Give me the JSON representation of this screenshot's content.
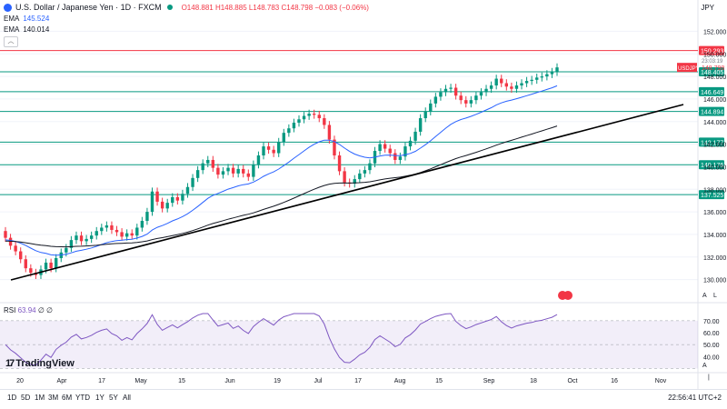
{
  "header": {
    "title": "U.S. Dollar / Japanese Yen · 1D · FXCM",
    "ohlc": "O148.881 H148.885 L148.783 C148.798 −0.083 (−0.06%)"
  },
  "indicators": {
    "ema1_label": "EMA",
    "ema1_value": "145.524",
    "ema2_label": "EMA",
    "ema2_value": "140.014",
    "collapse_glyph": "︿"
  },
  "currency": "JPY",
  "price_axis": {
    "ticks": [
      "152.000",
      "150.000",
      "148.000",
      "146.000",
      "144.000",
      "142.000",
      "140.000",
      "138.000",
      "136.000",
      "134.000",
      "132.000",
      "130.000"
    ],
    "hlines": [
      {
        "value": 150.293,
        "label": "150.293",
        "color": "#f23645"
      },
      {
        "value": 148.405,
        "label": "148.405",
        "color": "#089981"
      },
      {
        "value": 146.649,
        "label": "146.649",
        "color": "#089981"
      },
      {
        "value": 144.894,
        "label": "144.894",
        "color": "#089981"
      },
      {
        "value": 142.177,
        "label": "142.177",
        "color": "#089981"
      },
      {
        "value": 140.176,
        "label": "140.176",
        "color": "#089981"
      },
      {
        "value": 137.525,
        "label": "137.525",
        "color": "#089981"
      }
    ],
    "price_tag": {
      "symbol": "USDJPY",
      "value": "148.798",
      "time": "23:03:19"
    },
    "range": [
      129,
      153
    ]
  },
  "rsi": {
    "label": "RSI",
    "value": "63.94",
    "extra": "∅ ∅",
    "ticks": [
      "70.00",
      "60.00",
      "50.00",
      "40.00"
    ],
    "levels": [
      70,
      50,
      30
    ]
  },
  "time_axis": {
    "labels": [
      "20",
      "Apr",
      "17",
      "May",
      "15",
      "Jun",
      "19",
      "Jul",
      "17",
      "Aug",
      "15",
      "Sep",
      "18",
      "Oct",
      "16",
      "Nov"
    ]
  },
  "axis_buttons": {
    "log": "A",
    "lin": "L",
    "sep": "|",
    "full": "A"
  },
  "branding": {
    "logo_text": "TradingView",
    "logo_mark": "17"
  },
  "toolbar": {
    "timeframes": [
      "1D",
      "5D",
      "1M",
      "3M",
      "6M",
      "YTD",
      "1Y",
      "5Y",
      "All"
    ],
    "clock": "22:56:41 UTC+2"
  },
  "colors": {
    "up": "#089981",
    "down": "#f23645",
    "ema_fast": "#2962ff",
    "ema_slow": "#131722",
    "trend": "#000000",
    "rsi": "#7e57c2"
  },
  "chart_data": {
    "type": "candlestick",
    "closes": [
      133.7,
      133.0,
      132.5,
      131.8,
      131.0,
      130.6,
      130.4,
      130.9,
      131.5,
      131.0,
      131.9,
      132.4,
      132.8,
      133.5,
      133.9,
      133.4,
      133.6,
      133.9,
      134.3,
      134.6,
      134.8,
      134.4,
      134.2,
      133.8,
      134.1,
      133.9,
      134.6,
      135.2,
      136.0,
      137.8,
      136.9,
      136.3,
      136.8,
      137.3,
      137.0,
      137.6,
      138.2,
      139.0,
      139.7,
      140.3,
      140.6,
      139.9,
      139.3,
      139.6,
      139.9,
      139.4,
      139.8,
      139.4,
      139.1,
      140.2,
      141.0,
      141.8,
      141.5,
      141.2,
      142.2,
      143.0,
      143.4,
      143.9,
      144.2,
      144.5,
      144.7,
      144.6,
      144.3,
      143.7,
      142.4,
      141.0,
      139.6,
      138.6,
      138.5,
      138.9,
      139.4,
      139.7,
      140.3,
      141.4,
      142.0,
      141.6,
      141.2,
      140.6,
      140.9,
      141.8,
      142.3,
      143.1,
      144.3,
      144.9,
      145.6,
      146.2,
      146.6,
      146.9,
      147.0,
      146.3,
      145.9,
      145.6,
      145.9,
      146.3,
      146.6,
      146.9,
      147.2,
      147.8,
      147.4,
      147.1,
      146.9,
      147.2,
      147.4,
      147.6,
      147.7,
      147.9,
      148.0,
      148.2,
      148.4,
      148.8
    ],
    "ema_fast_last": 145.524,
    "ema_slow_last": 140.014,
    "rsi_last": 63.94
  }
}
